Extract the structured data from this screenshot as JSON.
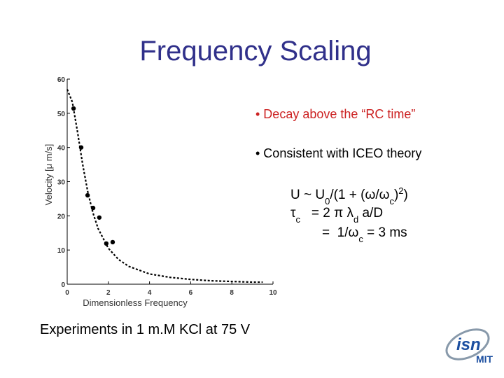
{
  "title": "Frequency Scaling",
  "bullets": [
    "• Decay above the “RC time”",
    "• Consistent with ICEO theory"
  ],
  "equations": [
    [
      {
        "text": "U ~ U"
      },
      {
        "sub": "0"
      },
      {
        "text": "/(1 + (ω/ω"
      },
      {
        "sub": "c"
      },
      {
        "text": ")"
      },
      {
        "sup": "2"
      },
      {
        "text": ")"
      }
    ],
    [
      {
        "text": "τ"
      },
      {
        "sub": "c"
      },
      {
        "text": "   = 2 π λ"
      },
      {
        "sub": "d"
      },
      {
        "text": " a/D"
      }
    ],
    [
      {
        "text": "=  1/ω"
      },
      {
        "sub": "c"
      },
      {
        "text": " = 3 ms"
      }
    ]
  ],
  "caption": "Experiments in 1 m.M KCl at 75 V",
  "logo": [
    "isn",
    "MIT"
  ],
  "chart_data": {
    "type": "scatter",
    "xlabel": "Dimensionless Frequency",
    "ylabel": "Velocity [μ m/s]",
    "xlim": [
      0,
      10
    ],
    "xticks": [
      0,
      2,
      4,
      6,
      8,
      10
    ],
    "ylim": [
      0,
      60
    ],
    "yticks": [
      0,
      10,
      20,
      30,
      40,
      50,
      60
    ],
    "series": [
      {
        "type": "scatter",
        "color": "#000000",
        "x": [
          0.31,
          0.68,
          0.99,
          1.26,
          1.56,
          1.9,
          2.21
        ],
        "values": [
          51.4,
          40.0,
          26.0,
          22.3,
          19.5,
          11.9,
          12.3
        ]
      },
      {
        "type": "line",
        "color": "#000000",
        "dashed": true,
        "x": [
          0,
          0.25,
          0.5,
          0.75,
          1,
          1.25,
          1.5,
          2,
          2.5,
          3,
          4,
          5,
          6,
          7,
          8,
          9,
          9.5
        ],
        "values": [
          57,
          53.3,
          44.6,
          35.1,
          27.0,
          20.9,
          16.3,
          10.5,
          7.2,
          5.2,
          3.0,
          2.0,
          1.4,
          1.0,
          0.8,
          0.6,
          0.6
        ]
      }
    ]
  }
}
